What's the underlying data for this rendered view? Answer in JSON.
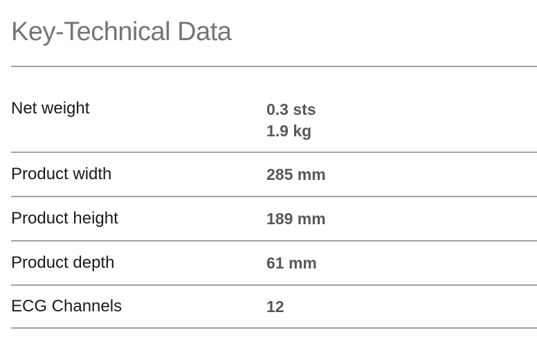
{
  "page": {
    "title": "Key-Technical Data"
  },
  "table": {
    "rows": [
      {
        "label": "Net weight",
        "values": [
          "0.3 sts",
          "1.9 kg"
        ]
      },
      {
        "label": "Product width",
        "values": [
          "285 mm"
        ]
      },
      {
        "label": "Product height",
        "values": [
          "189 mm"
        ]
      },
      {
        "label": "Product depth",
        "values": [
          "61 mm"
        ]
      },
      {
        "label": "ECG Channels",
        "values": [
          "12"
        ]
      }
    ]
  },
  "colors": {
    "background": "#ffffff",
    "title_text": "#757575",
    "label_text": "#1a1a1a",
    "value_text": "#58585a",
    "divider": "#a2a2a2"
  }
}
